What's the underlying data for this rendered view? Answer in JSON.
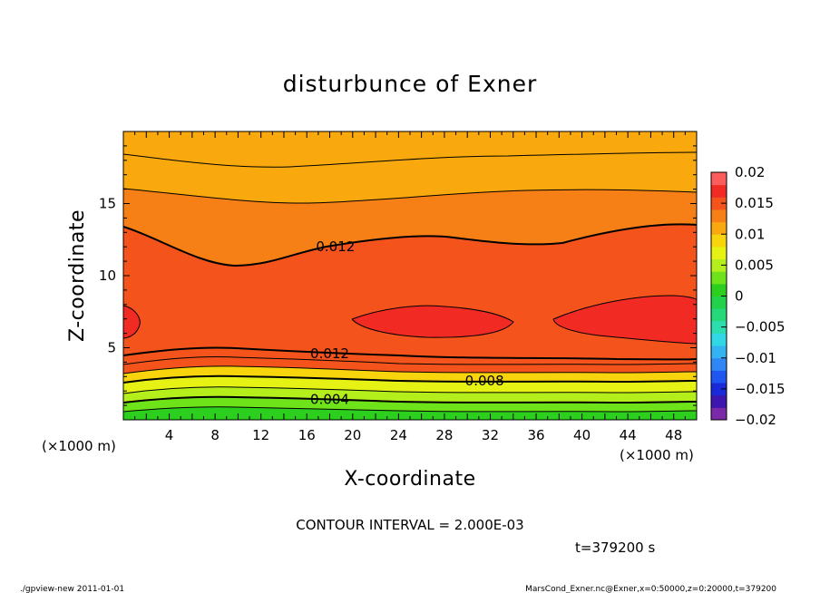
{
  "chart_data": {
    "type": "contour",
    "title": "disturbunce of Exner",
    "xlabel": "X-coordinate",
    "ylabel": "Z-coordinate",
    "x_unit": "(×1000 m)",
    "y_unit": "(×1000 m)",
    "xlim": [
      0,
      50
    ],
    "ylim": [
      0,
      20
    ],
    "x_ticks": [
      4,
      8,
      12,
      16,
      20,
      24,
      28,
      32,
      36,
      40,
      44,
      48
    ],
    "y_ticks": [
      5,
      10,
      15
    ],
    "contour_interval": "CONTOUR INTERVAL = 2.000E-03",
    "colorbar": {
      "ticks": [
        "0.02",
        "0.015",
        "0.01",
        "0.005",
        "0",
        "−0.005",
        "−0.01",
        "−0.015",
        "−0.02"
      ],
      "levels": [
        -0.02,
        -0.018,
        -0.016,
        -0.014,
        -0.012,
        -0.01,
        -0.008,
        -0.006,
        -0.004,
        -0.002,
        0,
        0.002,
        0.004,
        0.006,
        0.008,
        0.01,
        0.012,
        0.014,
        0.016,
        0.018,
        0.02
      ],
      "colors": [
        "#7a2aa8",
        "#3d16b0",
        "#1a2ad8",
        "#1f55f0",
        "#2f86f5",
        "#33b3f2",
        "#30d8e6",
        "#2cddb0",
        "#25d97a",
        "#22d24a",
        "#2ccf1e",
        "#6fe31a",
        "#b4ef1c",
        "#e6f214",
        "#f7d40c",
        "#f9a90d",
        "#f67f16",
        "#f4541c",
        "#f22a24",
        "#fb5d5d"
      ]
    },
    "contour_labels": [
      {
        "text": "0.012",
        "x": 18.5,
        "z": 12.0
      },
      {
        "text": "0.012",
        "x": 18.0,
        "z": 4.6
      },
      {
        "text": "0.008",
        "x": 31.5,
        "z": 2.7
      },
      {
        "text": "0.004",
        "x": 18.0,
        "z": 1.4
      }
    ]
  },
  "time_label": "t=379200 s",
  "footer_left": "./gpview-new   2011-01-01",
  "footer_right": "MarsCond_Exner.nc@Exner,x=0:50000,z=0:20000,t=379200"
}
